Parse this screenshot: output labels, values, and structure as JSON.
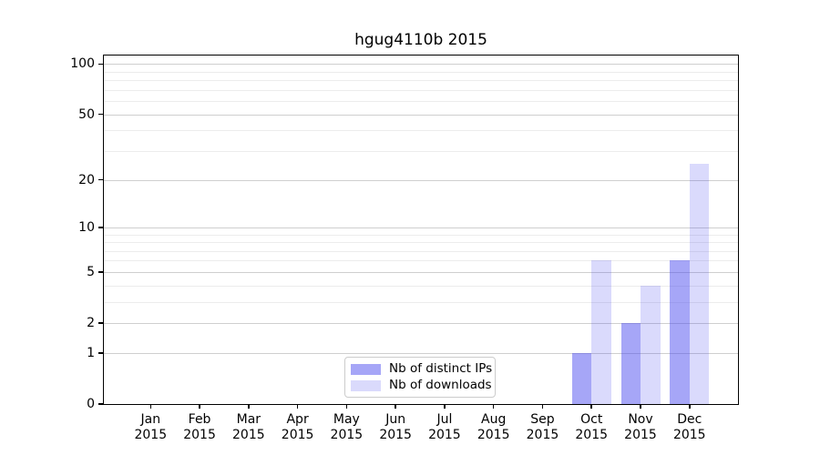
{
  "chart_data": {
    "type": "bar",
    "title": "hgug4110b 2015",
    "categories": [
      "Jan",
      "Feb",
      "Mar",
      "Apr",
      "May",
      "Jun",
      "Jul",
      "Aug",
      "Sep",
      "Oct",
      "Nov",
      "Dec"
    ],
    "x_year": "2015",
    "series": [
      {
        "name": "Nb of distinct IPs",
        "color": "rgba(68,68,238,0.48)",
        "color_over_white": "#a5a5f7",
        "values": [
          0,
          0,
          0,
          0,
          0,
          0,
          0,
          0,
          0,
          1,
          2,
          6
        ]
      },
      {
        "name": "Nb of downloads",
        "color": "rgba(68,68,238,0.20)",
        "color_over_white": "#d9d9fa",
        "values": [
          0,
          0,
          0,
          0,
          0,
          0,
          0,
          0,
          0,
          6,
          4,
          25
        ]
      }
    ],
    "yticks": [
      0,
      1,
      2,
      5,
      10,
      20,
      50,
      100
    ],
    "minor_yticks": [
      3,
      4,
      6,
      7,
      8,
      9,
      30,
      40,
      60,
      70,
      80,
      90
    ],
    "scale": "log1p",
    "ylim": [
      0,
      112
    ],
    "grid": "on",
    "legend_position": "lower-center",
    "colors": {
      "major_gridline": "#cfcfcf",
      "minor_gridline": "#ececec",
      "axis": "#000000",
      "background": "#ffffff"
    }
  }
}
